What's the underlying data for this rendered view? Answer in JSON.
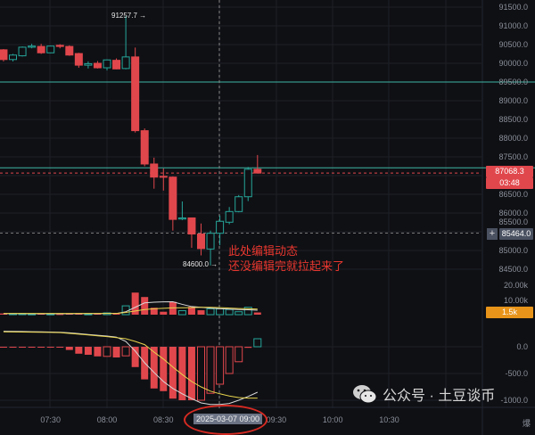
{
  "colors": {
    "up": "#26a69a",
    "down": "#e0474c",
    "bg": "#0f1014",
    "grid": "#1d2027",
    "teal_line": "#3fb5a3",
    "last_price": "#e0474c",
    "volume_badge": "#e8941a",
    "macd_line": "#d9d9d9",
    "signal_line": "#e8d44d",
    "note": "#e8372f",
    "ellipse": "#d52a22"
  },
  "price_axis": {
    "ticks": [
      "91500.0",
      "91000.0",
      "90500.0",
      "90000.0",
      "89500.0",
      "89000.0",
      "88500.0",
      "88000.0",
      "87500.0",
      "86500.0",
      "86000.0",
      "85500.0",
      "85000.0",
      "84500.0"
    ],
    "last_price": "87068.3",
    "countdown": "03:48",
    "crosshair_price": "85464.0",
    "horizontal_lines": [
      89500,
      87207
    ]
  },
  "volume_axis": {
    "ticks": [
      "20.00k",
      "10.00k"
    ],
    "current": "1.5k"
  },
  "macd_axis": {
    "ticks": [
      "0.0",
      "-500.0",
      "-1000.0"
    ]
  },
  "time_axis": {
    "labels": [
      "07:30",
      "08:00",
      "08:30",
      "09:30",
      "10:00",
      "10:30"
    ],
    "crosshair_time": "2025-03-07 09:00"
  },
  "annotations": {
    "high_label": "91257.7 →",
    "low_label": "84600.0 →",
    "note_line1": "此处编辑动态",
    "note_line2": "还没编辑完就拉起来了"
  },
  "watermark": {
    "text": "公众号 · 土豆谈币",
    "icon": "wechat-icon"
  },
  "bottom_right": "爆",
  "candles": [
    {
      "t": "07:05",
      "o": 90360,
      "h": 90380,
      "l": 90050,
      "c": 90100,
      "v": 0.8
    },
    {
      "t": "07:10",
      "o": 90100,
      "h": 90250,
      "l": 90050,
      "c": 90220,
      "v": 0.6
    },
    {
      "t": "07:15",
      "o": 90200,
      "h": 90450,
      "l": 90180,
      "c": 90430,
      "v": 0.7
    },
    {
      "t": "07:20",
      "o": 90430,
      "h": 90520,
      "l": 90400,
      "c": 90460,
      "v": 0.5
    },
    {
      "t": "07:25",
      "o": 90450,
      "h": 90520,
      "l": 90250,
      "c": 90280,
      "v": 0.6
    },
    {
      "t": "07:30",
      "o": 90280,
      "h": 90470,
      "l": 90270,
      "c": 90460,
      "v": 0.5
    },
    {
      "t": "07:35",
      "o": 90480,
      "h": 90510,
      "l": 90400,
      "c": 90450,
      "v": 0.4
    },
    {
      "t": "07:40",
      "o": 90450,
      "h": 90480,
      "l": 90200,
      "c": 90220,
      "v": 0.8
    },
    {
      "t": "07:45",
      "o": 90260,
      "h": 90280,
      "l": 89880,
      "c": 89950,
      "v": 1.0
    },
    {
      "t": "07:50",
      "o": 89950,
      "h": 90050,
      "l": 89860,
      "c": 89990,
      "v": 0.5
    },
    {
      "t": "07:55",
      "o": 90000,
      "h": 90060,
      "l": 89860,
      "c": 89880,
      "v": 0.6
    },
    {
      "t": "08:00",
      "o": 89880,
      "h": 90100,
      "l": 89810,
      "c": 90090,
      "v": 1.2
    },
    {
      "t": "08:05",
      "o": 90080,
      "h": 90130,
      "l": 89840,
      "c": 89850,
      "v": 0.8
    },
    {
      "t": "08:10",
      "o": 89860,
      "h": 91257.7,
      "l": 89840,
      "c": 90170,
      "v": 6
    },
    {
      "t": "08:15",
      "o": 90170,
      "h": 90420,
      "l": 88150,
      "c": 88200,
      "v": 15
    },
    {
      "t": "08:20",
      "o": 88200,
      "h": 88260,
      "l": 87250,
      "c": 87310,
      "v": 12
    },
    {
      "t": "08:25",
      "o": 87310,
      "h": 87480,
      "l": 86650,
      "c": 86960,
      "v": 4.7
    },
    {
      "t": "08:30",
      "o": 86980,
      "h": 87190,
      "l": 86600,
      "c": 86960,
      "v": 2
    },
    {
      "t": "08:35",
      "o": 86960,
      "h": 86980,
      "l": 85530,
      "c": 85830,
      "v": 8.7
    },
    {
      "t": "08:40",
      "o": 85840,
      "h": 86310,
      "l": 85810,
      "c": 85870,
      "v": 2.7
    },
    {
      "t": "08:45",
      "o": 85870,
      "h": 85880,
      "l": 85070,
      "c": 85440,
      "v": 5.3
    },
    {
      "t": "08:50",
      "o": 85440,
      "h": 85720,
      "l": 84870,
      "c": 85050,
      "v": 3
    },
    {
      "t": "08:55",
      "o": 85040,
      "h": 85530,
      "l": 84600,
      "c": 85460,
      "v": 4
    },
    {
      "t": "09:00",
      "o": 85460,
      "h": 85935,
      "l": 85140,
      "c": 85780,
      "v": 4
    },
    {
      "t": "09:05",
      "o": 85755,
      "h": 86160,
      "l": 85700,
      "c": 86040,
      "v": 3.5
    },
    {
      "t": "09:10",
      "o": 86040,
      "h": 86480,
      "l": 86020,
      "c": 86435,
      "v": 2
    },
    {
      "t": "09:15",
      "o": 86435,
      "h": 87230,
      "l": 86320,
      "c": 87170,
      "v": 5
    },
    {
      "t": "09:20",
      "o": 87170,
      "h": 87550,
      "l": 87060,
      "c": 87068.3,
      "v": 1.5
    }
  ],
  "macd": {
    "hist": [
      -10,
      -10,
      -10,
      -5,
      -10,
      -10,
      -10,
      -60,
      -130,
      -150,
      -180,
      -180,
      -200,
      -170,
      -380,
      -610,
      -780,
      -830,
      -970,
      -1000,
      -1000,
      -1000,
      -870,
      -700,
      -500,
      -280,
      -20,
      150
    ],
    "hist_hollow": [
      false,
      false,
      false,
      false,
      false,
      false,
      false,
      false,
      false,
      false,
      false,
      true,
      false,
      true,
      false,
      false,
      false,
      false,
      false,
      false,
      false,
      true,
      true,
      true,
      true,
      true,
      false,
      true
    ],
    "macd": [
      290,
      288,
      285,
      282,
      280,
      275,
      270,
      260,
      245,
      230,
      215,
      200,
      180,
      100,
      -80,
      -300,
      -480,
      -650,
      -780,
      -880,
      -970,
      -1050,
      -1080,
      -1080,
      -1060,
      -1000,
      -930,
      -850
    ],
    "signal": [
      280,
      278,
      275,
      272,
      270,
      268,
      265,
      250,
      235,
      220,
      205,
      190,
      170,
      150,
      100,
      40,
      -100,
      -230,
      -380,
      -520,
      -650,
      -750,
      -830,
      -880,
      -920,
      -950,
      -960,
      -960
    ]
  },
  "volume_ma": {
    "fast": [
      0.7,
      0.7,
      0.7,
      0.6,
      0.6,
      0.6,
      0.6,
      0.6,
      0.7,
      0.7,
      0.7,
      0.8,
      0.8,
      2,
      5,
      8,
      8.5,
      8.7,
      8.8,
      7,
      5.5,
      5,
      4.5,
      4,
      3.8,
      3.5,
      3.3,
      3
    ],
    "slow": [
      0.8,
      0.8,
      0.8,
      0.8,
      0.8,
      0.8,
      0.8,
      0.8,
      0.8,
      0.8,
      0.8,
      0.8,
      0.8,
      1.5,
      2.5,
      3.5,
      4,
      4.3,
      4.6,
      4.7,
      4.8,
      5,
      5,
      4.8,
      4.5,
      4.2,
      4,
      3.8
    ]
  }
}
